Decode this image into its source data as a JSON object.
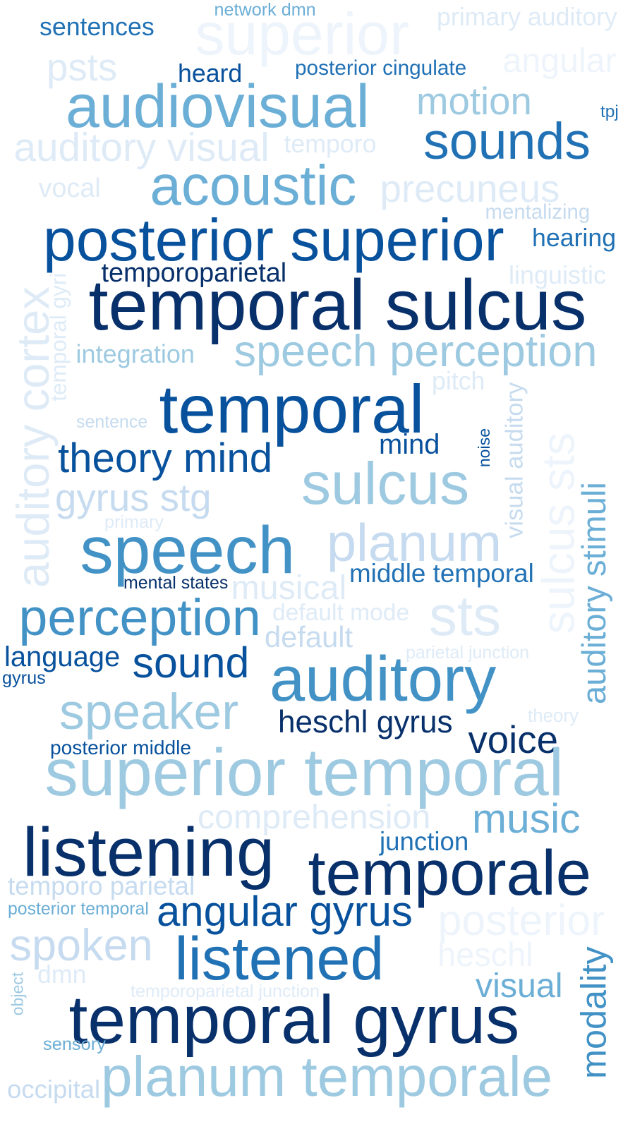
{
  "palette": {
    "c1": "#08306b",
    "c2": "#08519c",
    "c3": "#2171b5",
    "c4": "#4292c6",
    "c5": "#6baed6",
    "c6": "#9ecae1",
    "c7": "#c6dbef",
    "c8": "#deebf7",
    "c9": "#eef4fb"
  },
  "words": [
    {
      "text": "network dmn",
      "color": "c5",
      "vertical": false
    },
    {
      "text": "superior",
      "color": "c9",
      "vertical": false
    },
    {
      "text": "primary auditory",
      "color": "c8",
      "vertical": false
    },
    {
      "text": "sentences",
      "color": "c3",
      "vertical": false
    },
    {
      "text": "psts",
      "color": "c8",
      "vertical": false
    },
    {
      "text": "heard",
      "color": "c2",
      "vertical": false
    },
    {
      "text": "posterior cingulate",
      "color": "c3",
      "vertical": false
    },
    {
      "text": "angular",
      "color": "c9",
      "vertical": false
    },
    {
      "text": "audiovisual",
      "color": "c5",
      "vertical": false
    },
    {
      "text": "motion",
      "color": "c6",
      "vertical": false
    },
    {
      "text": "tpj",
      "color": "c3",
      "vertical": false
    },
    {
      "text": "sounds",
      "color": "c3",
      "vertical": false
    },
    {
      "text": "auditory visual",
      "color": "c8",
      "vertical": false
    },
    {
      "text": "temporo",
      "color": "c8",
      "vertical": false
    },
    {
      "text": "acoustic",
      "color": "c5",
      "vertical": false
    },
    {
      "text": "vocal",
      "color": "c8",
      "vertical": false
    },
    {
      "text": "precuneus",
      "color": "c8",
      "vertical": false
    },
    {
      "text": "mentalizing",
      "color": "c7",
      "vertical": false
    },
    {
      "text": "posterior superior",
      "color": "c2",
      "vertical": false
    },
    {
      "text": "hearing",
      "color": "c3",
      "vertical": false
    },
    {
      "text": "temporoparietal",
      "color": "c1",
      "vertical": false
    },
    {
      "text": "linguistic",
      "color": "c8",
      "vertical": false
    },
    {
      "text": "temporal gyri",
      "color": "c8",
      "vertical": true
    },
    {
      "text": "auditory cortex",
      "color": "c8",
      "vertical": true
    },
    {
      "text": "temporal sulcus",
      "color": "c1",
      "vertical": false
    },
    {
      "text": "integration",
      "color": "c6",
      "vertical": false
    },
    {
      "text": "speech perception",
      "color": "c6",
      "vertical": false
    },
    {
      "text": "pitch",
      "color": "c8",
      "vertical": false
    },
    {
      "text": "sentence",
      "color": "c7",
      "vertical": false
    },
    {
      "text": "temporal",
      "color": "c2",
      "vertical": false
    },
    {
      "text": "visual auditory",
      "color": "c7",
      "vertical": true
    },
    {
      "text": "sulcus sts",
      "color": "c9",
      "vertical": true
    },
    {
      "text": "theory mind",
      "color": "c2",
      "vertical": false
    },
    {
      "text": "mind",
      "color": "c2",
      "vertical": false
    },
    {
      "text": "noise",
      "color": "c2",
      "vertical": true
    },
    {
      "text": "auditory stimuli",
      "color": "c5",
      "vertical": true
    },
    {
      "text": "gyrus stg",
      "color": "c7",
      "vertical": false
    },
    {
      "text": "sulcus",
      "color": "c6",
      "vertical": false
    },
    {
      "text": "primary",
      "color": "c8",
      "vertical": false
    },
    {
      "text": "speech",
      "color": "c4",
      "vertical": false
    },
    {
      "text": "planum",
      "color": "c7",
      "vertical": false
    },
    {
      "text": "middle temporal",
      "color": "c3",
      "vertical": false
    },
    {
      "text": "mental states",
      "color": "c1",
      "vertical": false
    },
    {
      "text": "musical",
      "color": "c8",
      "vertical": false
    },
    {
      "text": "perception",
      "color": "c4",
      "vertical": false
    },
    {
      "text": "default mode",
      "color": "c8",
      "vertical": false
    },
    {
      "text": "sts",
      "color": "c8",
      "vertical": false
    },
    {
      "text": "default",
      "color": "c7",
      "vertical": false
    },
    {
      "text": "parietal junction",
      "color": "c8",
      "vertical": false
    },
    {
      "text": "language",
      "color": "c2",
      "vertical": false
    },
    {
      "text": "gyrus",
      "color": "c2",
      "vertical": false
    },
    {
      "text": "sound",
      "color": "c2",
      "vertical": false
    },
    {
      "text": "auditory",
      "color": "c4",
      "vertical": false
    },
    {
      "text": "speaker",
      "color": "c6",
      "vertical": false
    },
    {
      "text": "theory",
      "color": "c8",
      "vertical": false
    },
    {
      "text": "heschl gyrus",
      "color": "c1",
      "vertical": false
    },
    {
      "text": "posterior middle",
      "color": "c2",
      "vertical": false
    },
    {
      "text": "voice",
      "color": "c1",
      "vertical": false
    },
    {
      "text": "superior temporal",
      "color": "c6",
      "vertical": false
    },
    {
      "text": "comprehension",
      "color": "c8",
      "vertical": false
    },
    {
      "text": "music",
      "color": "c5",
      "vertical": false
    },
    {
      "text": "listening",
      "color": "c1",
      "vertical": false
    },
    {
      "text": "junction",
      "color": "c3",
      "vertical": false
    },
    {
      "text": "temporale",
      "color": "c1",
      "vertical": false
    },
    {
      "text": "temporo parietal",
      "color": "c7",
      "vertical": false
    },
    {
      "text": "posterior temporal",
      "color": "c5",
      "vertical": false
    },
    {
      "text": "angular gyrus",
      "color": "c2",
      "vertical": false
    },
    {
      "text": "posterior",
      "color": "c9",
      "vertical": false
    },
    {
      "text": "spoken",
      "color": "c7",
      "vertical": false
    },
    {
      "text": "listened",
      "color": "c3",
      "vertical": false
    },
    {
      "text": "heschl",
      "color": "c9",
      "vertical": false
    },
    {
      "text": "object",
      "color": "c6",
      "vertical": true
    },
    {
      "text": "dmn",
      "color": "c8",
      "vertical": false
    },
    {
      "text": "temporoparietal junction",
      "color": "c8",
      "vertical": false
    },
    {
      "text": "visual",
      "color": "c5",
      "vertical": false
    },
    {
      "text": "modality",
      "color": "c4",
      "vertical": true
    },
    {
      "text": "temporal gyrus",
      "color": "c1",
      "vertical": false
    },
    {
      "text": "sensory",
      "color": "c5",
      "vertical": false
    },
    {
      "text": "occipital",
      "color": "c7",
      "vertical": false
    },
    {
      "text": "planum temporale",
      "color": "c6",
      "vertical": false
    }
  ]
}
